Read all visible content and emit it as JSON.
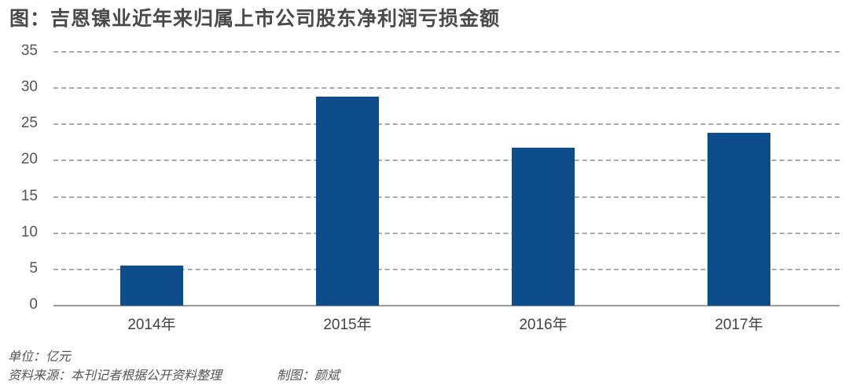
{
  "title": "图：吉恩镍业近年来归属上市公司股东净利润亏损金额",
  "footer": {
    "unit": "单位：亿元",
    "source": "资料来源：本刊记者根据公开资料整理",
    "credit": "制图：颜斌"
  },
  "chart_data": {
    "type": "bar",
    "title": "图：吉恩镍业近年来归属上市公司股东净利润亏损金额",
    "categories": [
      "2014年",
      "2015年",
      "2016年",
      "2017年"
    ],
    "values": [
      5.5,
      28.8,
      21.8,
      23.8
    ],
    "xlabel": "",
    "ylabel": "单位：亿元",
    "ylim": [
      0,
      35
    ],
    "yticks": [
      "0",
      "5",
      "10",
      "15",
      "20",
      "25",
      "30",
      "35"
    ],
    "grid": true,
    "legend": "none",
    "bar_color": "#0e4d8c"
  }
}
